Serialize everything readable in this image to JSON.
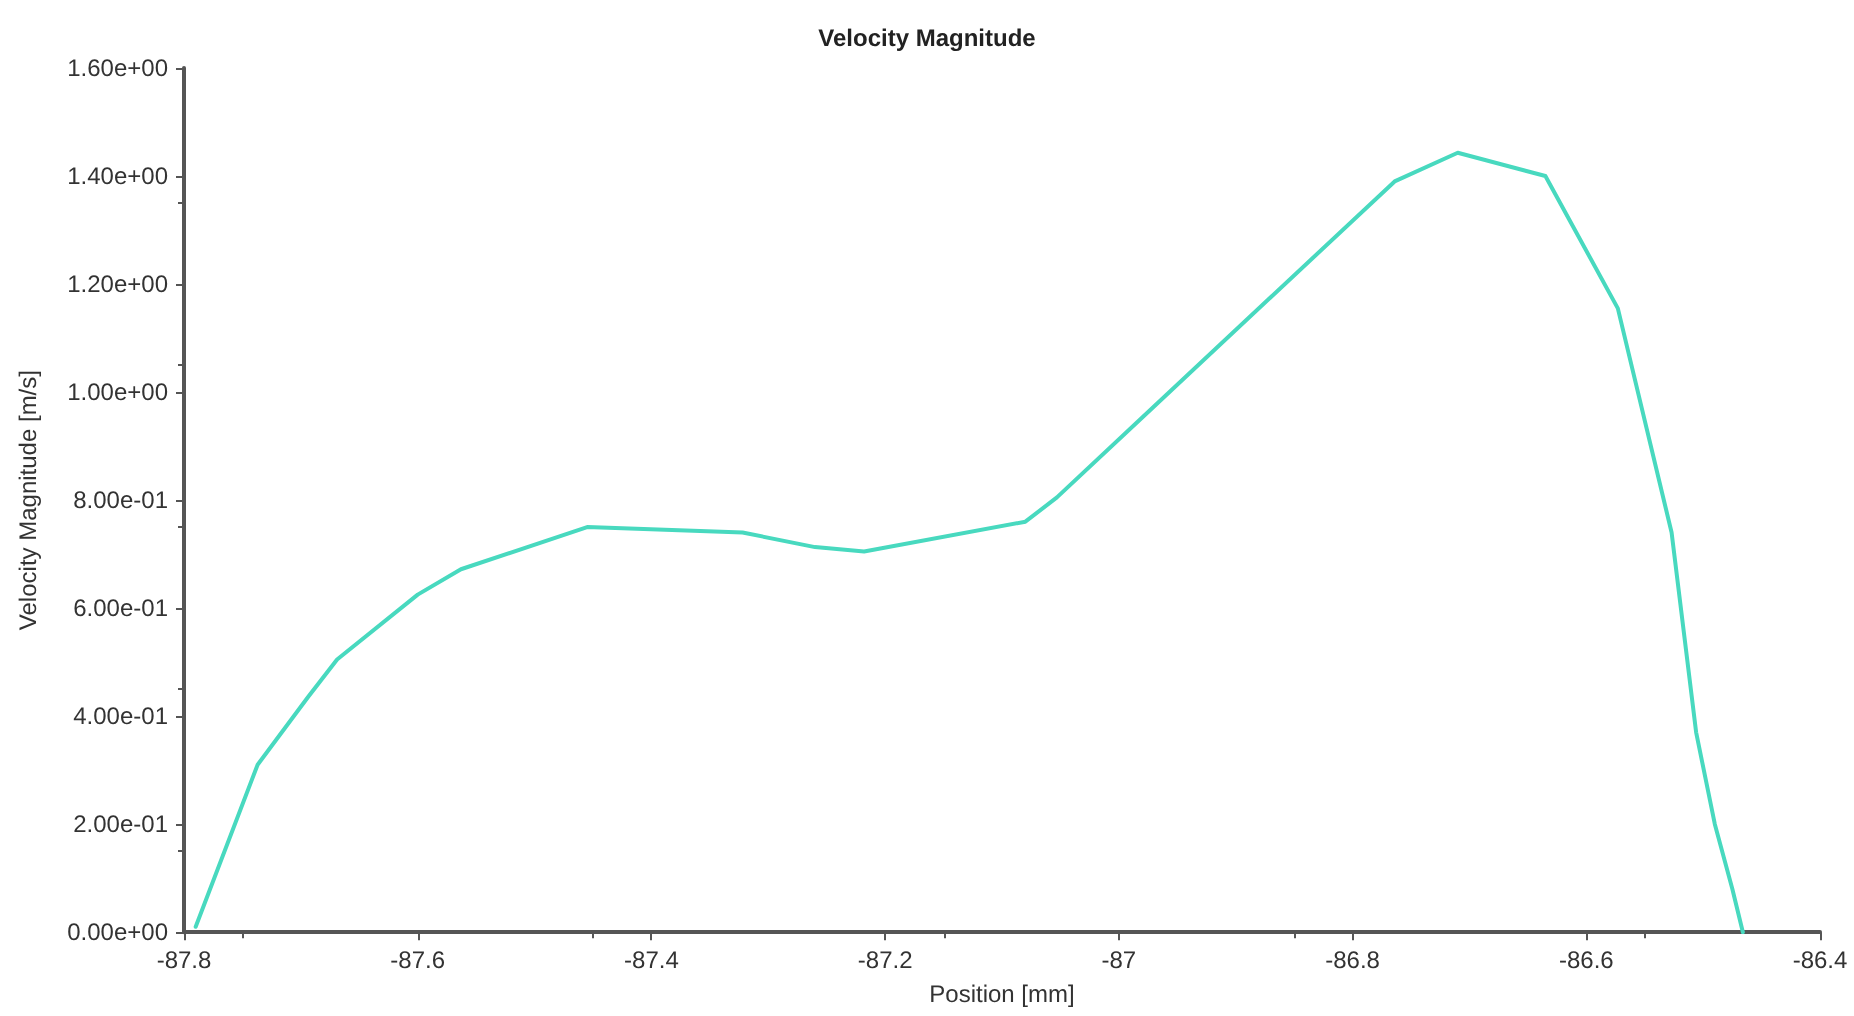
{
  "chart_data": {
    "type": "line",
    "title": "Velocity Magnitude",
    "xlabel": "Position [mm]",
    "ylabel": "Velocity Magnitude [m/s]",
    "x": [
      -87.79,
      -87.737,
      -87.694,
      -87.669,
      -87.6,
      -87.563,
      -87.455,
      -87.322,
      -87.26,
      -87.218,
      -87.08,
      -87.053,
      -86.98,
      -86.764,
      -86.71,
      -86.635,
      -86.573,
      -86.527,
      -86.506,
      -86.49,
      -86.475,
      -86.466
    ],
    "series": [
      {
        "color": "#48d9bf",
        "values": [
          0.01,
          0.31,
          0.435,
          0.505,
          0.625,
          0.672,
          0.75,
          0.74,
          0.713,
          0.705,
          0.76,
          0.805,
          0.953,
          1.39,
          1.443,
          1.4,
          1.155,
          0.74,
          0.37,
          0.2,
          0.08,
          0
        ]
      }
    ],
    "xlim": [
      -87.8,
      -86.4
    ],
    "xticks": [
      -87.8,
      -87.6,
      -87.4,
      -87.2,
      -87,
      -86.8,
      -86.6,
      -86.4
    ],
    "ylim": [
      0,
      1.6
    ],
    "yticks": [
      {
        "value": 0,
        "label": "0.00e+00"
      },
      {
        "value": 0.2,
        "label": "2.00e-01"
      },
      {
        "value": 0.4,
        "label": "4.00e-01"
      },
      {
        "value": 0.6,
        "label": "6.00e-01"
      },
      {
        "value": 0.8,
        "label": "8.00e-01"
      },
      {
        "value": 1,
        "label": "1.00e+00"
      },
      {
        "value": 1.2,
        "label": "1.20e+00"
      },
      {
        "value": 1.4,
        "label": "1.40e+00"
      },
      {
        "value": 1.6,
        "label": "1.60e+00"
      }
    ],
    "grid": false,
    "marker": "none",
    "line_style": "solid"
  }
}
